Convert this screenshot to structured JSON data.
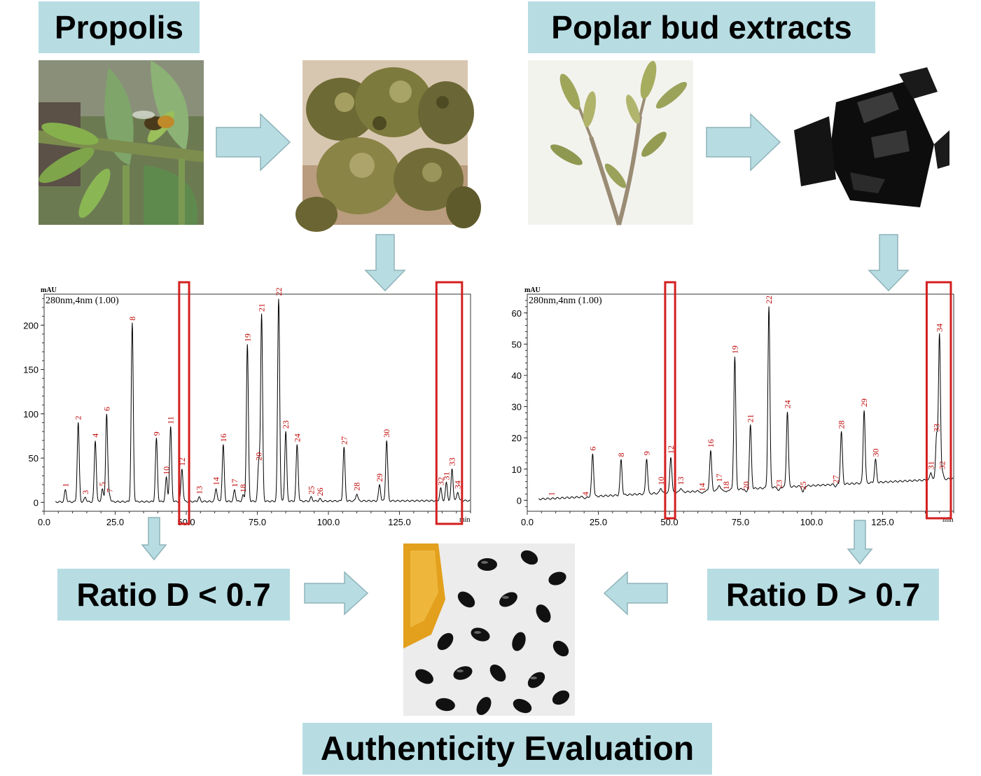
{
  "labels": {
    "propolis": "Propolis",
    "poplar": "Poplar bud extracts",
    "ratio_left": "Ratio D < 0.7",
    "ratio_right": "Ratio D > 0.7",
    "authenticity": "Authenticity Evaluation"
  },
  "colors": {
    "box_fill": "#b7dde3",
    "arrow_fill": "#b7dde3",
    "arrow_stroke": "#8fb3b9",
    "peak_label": "#c00000",
    "highlight": "#d41f1f"
  },
  "chart_data": [
    {
      "type": "line",
      "xunit": "min",
      "ylabel": "mAU",
      "subtitle": "280nm,4nm (1.00)",
      "xlim": [
        0,
        150
      ],
      "ylim": [
        -10,
        235
      ],
      "xticks": [
        "0.0",
        "25.0",
        "50.0",
        "75.0",
        "100.0",
        "125.0"
      ],
      "yticks": [
        "0",
        "50",
        "100",
        "150",
        "200"
      ],
      "peaks": [
        {
          "label": "1",
          "x": 7.5,
          "y": 14
        },
        {
          "label": "2",
          "x": 12,
          "y": 90
        },
        {
          "label": "3",
          "x": 14.5,
          "y": 6
        },
        {
          "label": "4",
          "x": 18,
          "y": 70
        },
        {
          "label": "5",
          "x": 20.5,
          "y": 15
        },
        {
          "label": "6",
          "x": 22,
          "y": 100
        },
        {
          "label": "7",
          "x": 23,
          "y": 8
        },
        {
          "label": "8",
          "x": 31,
          "y": 202
        },
        {
          "label": "9",
          "x": 39.5,
          "y": 72
        },
        {
          "label": "10",
          "x": 43,
          "y": 28
        },
        {
          "label": "11",
          "x": 44.5,
          "y": 85
        },
        {
          "label": "12",
          "x": 48.5,
          "y": 38
        },
        {
          "label": "13",
          "x": 54.5,
          "y": 6
        },
        {
          "label": "14",
          "x": 60.5,
          "y": 16
        },
        {
          "label": "16",
          "x": 63,
          "y": 65
        },
        {
          "label": "17",
          "x": 67,
          "y": 14
        },
        {
          "label": "18",
          "x": 70,
          "y": 8
        },
        {
          "label": "19",
          "x": 71.5,
          "y": 178
        },
        {
          "label": "20",
          "x": 75.5,
          "y": 44
        },
        {
          "label": "21",
          "x": 76.5,
          "y": 212
        },
        {
          "label": "22",
          "x": 82.5,
          "y": 230
        },
        {
          "label": "23",
          "x": 85,
          "y": 80
        },
        {
          "label": "24",
          "x": 89,
          "y": 65
        },
        {
          "label": "25",
          "x": 94,
          "y": 6
        },
        {
          "label": "26",
          "x": 97,
          "y": 4
        },
        {
          "label": "27",
          "x": 105.5,
          "y": 62
        },
        {
          "label": "28",
          "x": 110,
          "y": 10
        },
        {
          "label": "29",
          "x": 118,
          "y": 20
        },
        {
          "label": "30",
          "x": 120.5,
          "y": 70
        },
        {
          "label": "31",
          "x": 141.5,
          "y": 22
        },
        {
          "label": "32",
          "x": 139.5,
          "y": 16
        },
        {
          "label": "33",
          "x": 143.5,
          "y": 38
        },
        {
          "label": "34",
          "x": 145.5,
          "y": 12
        }
      ],
      "highlight_ranges": [
        [
          47.5,
          51
        ],
        [
          138,
          147
        ]
      ]
    },
    {
      "type": "line",
      "xunit": "min",
      "ylabel": "mAU",
      "subtitle": "280nm,4nm (1.00)",
      "xlim": [
        0,
        150
      ],
      "ylim": [
        -3.5,
        66
      ],
      "xticks": [
        "0.0",
        "25.0",
        "50.0",
        "75.0",
        "100.0",
        "125.0"
      ],
      "yticks": [
        "0",
        "10",
        "20",
        "30",
        "40",
        "50",
        "60"
      ],
      "peaks": [
        {
          "label": "1",
          "x": 8.5,
          "y": 0.5
        },
        {
          "label": "4",
          "x": 20.5,
          "y": 0.5
        },
        {
          "label": "6",
          "x": 23,
          "y": 15
        },
        {
          "label": "8",
          "x": 33,
          "y": 13
        },
        {
          "label": "9",
          "x": 42,
          "y": 13.5
        },
        {
          "label": "10",
          "x": 47,
          "y": 4
        },
        {
          "label": "12",
          "x": 50.5,
          "y": 14
        },
        {
          "label": "13",
          "x": 54,
          "y": 4
        },
        {
          "label": "14",
          "x": 61.5,
          "y": 2
        },
        {
          "label": "16",
          "x": 64.5,
          "y": 16
        },
        {
          "label": "17",
          "x": 67.5,
          "y": 5
        },
        {
          "label": "18",
          "x": 70,
          "y": 2.5
        },
        {
          "label": "19",
          "x": 73,
          "y": 46
        },
        {
          "label": "20",
          "x": 77,
          "y": 2.5
        },
        {
          "label": "21",
          "x": 78.5,
          "y": 24
        },
        {
          "label": "22",
          "x": 85,
          "y": 62
        },
        {
          "label": "23",
          "x": 88.5,
          "y": 3
        },
        {
          "label": "24",
          "x": 91.5,
          "y": 28.5
        },
        {
          "label": "25",
          "x": 97,
          "y": 2.5
        },
        {
          "label": "27",
          "x": 108.5,
          "y": 4.5
        },
        {
          "label": "28",
          "x": 110.5,
          "y": 22
        },
        {
          "label": "29",
          "x": 118.5,
          "y": 29
        },
        {
          "label": "30",
          "x": 122.5,
          "y": 13
        },
        {
          "label": "31",
          "x": 142,
          "y": 9
        },
        {
          "label": "32",
          "x": 146,
          "y": 9
        },
        {
          "label": "33",
          "x": 144,
          "y": 21
        },
        {
          "label": "34",
          "x": 145,
          "y": 53
        }
      ],
      "highlight_ranges": [
        [
          48.5,
          52
        ],
        [
          140.5,
          149
        ]
      ]
    }
  ],
  "icons": {
    "arrow": "block-arrow-icon"
  }
}
